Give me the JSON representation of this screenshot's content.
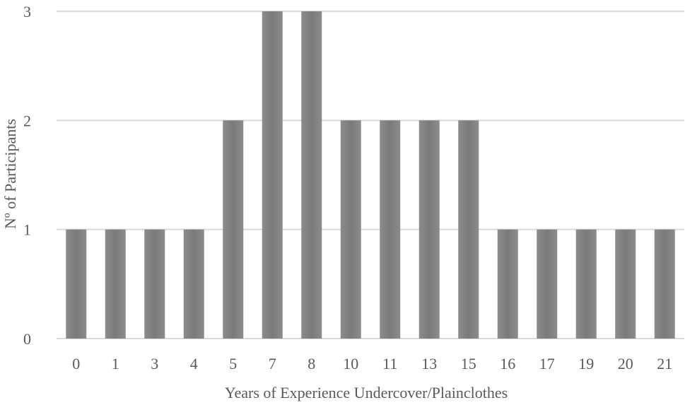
{
  "chart_data": {
    "type": "bar",
    "categories": [
      "0",
      "1",
      "3",
      "4",
      "5",
      "7",
      "8",
      "10",
      "11",
      "13",
      "15",
      "16",
      "17",
      "19",
      "20",
      "21"
    ],
    "values": [
      1,
      1,
      1,
      1,
      2,
      3,
      3,
      2,
      2,
      2,
      2,
      1,
      1,
      1,
      1,
      1
    ],
    "xlabel": "Years of Experience Undercover/Plainclothes",
    "ylabel": "Nº of Participants",
    "ylim": [
      0,
      3
    ],
    "yticks": [
      "0",
      "1",
      "2",
      "3"
    ],
    "grid": true,
    "bar_color": "#7f7f7f",
    "grid_color": "#d9d9d9",
    "text_color": "#595959"
  }
}
